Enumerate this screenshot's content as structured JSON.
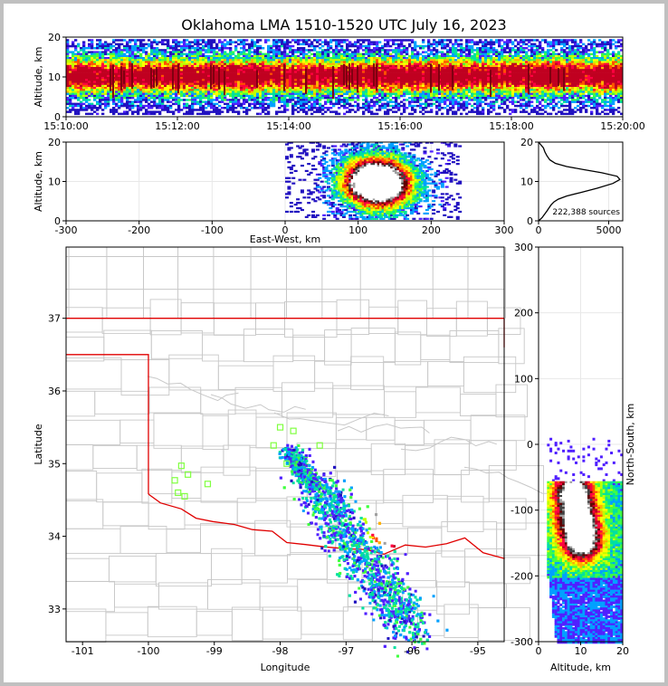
{
  "title": "Oklahoma LMA 1510-1520 UTC July 16, 2023",
  "colors": {
    "state_border": "#e00000",
    "county": "#c8c8c8",
    "station": "#80ff40",
    "density": [
      "#2010c0",
      "#5020ff",
      "#00a0ff",
      "#00e0a0",
      "#40ff40",
      "#c0ff00",
      "#ffff00",
      "#ffb000",
      "#ff5000",
      "#ff0040",
      "#c00020",
      "#600000",
      "#404040",
      "#a0a0a0",
      "#ffffff"
    ]
  },
  "chart_data": [
    {
      "type": "heatmap",
      "panel": "altitude-time",
      "ylabel": "Altitude, km",
      "ylim": [
        0,
        20
      ],
      "yticks": [
        "0",
        "10",
        "20"
      ],
      "xticks": [
        "15:10:00",
        "15:12:00",
        "15:14:00",
        "15:16:00",
        "15:18:00",
        "15:20:00"
      ],
      "band_peak_altitude_km": 10.5
    },
    {
      "type": "heatmap",
      "panel": "east-west-altitude",
      "xlabel": "East-West, km",
      "ylabel": "Altitude, km",
      "xlim": [
        -300,
        300
      ],
      "ylim": [
        0,
        20
      ],
      "xticks": [
        "-300",
        "-200",
        "-100",
        "0",
        "100",
        "200",
        "300"
      ],
      "yticks": [
        "0",
        "10",
        "20"
      ],
      "cores": [
        {
          "x_km": 115,
          "alt_km": 10
        },
        {
          "x_km": 135,
          "alt_km": 9
        }
      ]
    },
    {
      "type": "line",
      "panel": "altitude-histogram",
      "annotation": "222,388 sources",
      "xlim": [
        0,
        6000
      ],
      "ylim": [
        0,
        20
      ],
      "xticks": [
        "0",
        "5000"
      ],
      "yticks": [
        "0",
        "10",
        "20"
      ],
      "x": [
        0,
        250,
        450,
        600,
        750,
        900,
        1100,
        1400,
        2000,
        3000,
        4200,
        5300,
        5800,
        5600,
        4500,
        3200,
        2000,
        1200,
        800,
        600,
        450,
        350,
        0
      ],
      "y": [
        0,
        0.8,
        1.8,
        2.5,
        3.3,
        4.1,
        4.8,
        5.5,
        6.3,
        7.2,
        8.3,
        9.5,
        10.5,
        11.3,
        12.2,
        13,
        13.8,
        14.6,
        15.5,
        16.5,
        17.5,
        18.5,
        20
      ]
    },
    {
      "type": "scatter",
      "panel": "plan-view",
      "xlabel": "Longitude",
      "ylabel": "Latitude",
      "xlim": [
        -101.25,
        -94.6
      ],
      "ylim": [
        32.55,
        37.98
      ],
      "xticks": [
        "-101",
        "-100",
        "-99",
        "-98",
        "-97",
        "-96",
        "-95"
      ],
      "yticks": [
        "33",
        "34",
        "35",
        "36",
        "37"
      ],
      "stations": [
        [
          -98.0,
          35.5
        ],
        [
          -97.8,
          35.45
        ],
        [
          -98.1,
          35.25
        ],
        [
          -97.9,
          35.0
        ],
        [
          -97.4,
          35.25
        ],
        [
          -99.5,
          34.97
        ],
        [
          -99.6,
          34.77
        ],
        [
          -99.4,
          34.85
        ],
        [
          -99.1,
          34.72
        ],
        [
          -99.55,
          34.6
        ],
        [
          -99.45,
          34.55
        ]
      ],
      "storm_cores": [
        [
          -96.75,
          34.65
        ],
        [
          -96.6,
          34.3
        ],
        [
          -96.5,
          34.05
        ],
        [
          -96.35,
          33.95
        ]
      ]
    },
    {
      "type": "heatmap",
      "panel": "altitude-north-south",
      "xlabel": "Altitude, km",
      "ylabel": "North-South, km",
      "xlim": [
        0,
        20
      ],
      "ylim": [
        -300,
        300
      ],
      "xticks": [
        "0",
        "10",
        "20"
      ],
      "yticks": [
        "-300",
        "-200",
        "-100",
        "0",
        "100",
        "200",
        "300"
      ],
      "cores": [
        {
          "alt_km": 8,
          "y_km": -70
        },
        {
          "alt_km": 9,
          "y_km": -112
        },
        {
          "alt_km": 10,
          "y_km": -148
        }
      ]
    }
  ]
}
